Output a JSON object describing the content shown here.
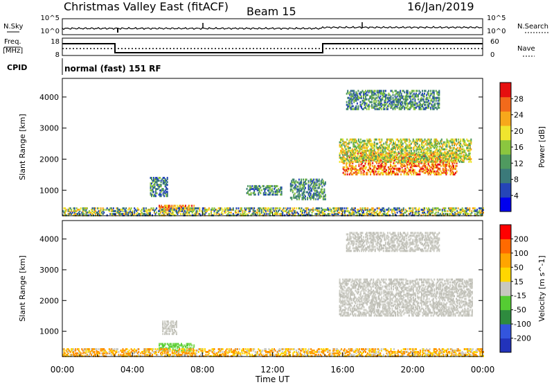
{
  "header": {
    "title": "Christmas Valley East (fitACF)",
    "beam": "Beam 15",
    "date": "16/Jan/2019"
  },
  "top_panels": {
    "nsky_label": "N.Sky",
    "nsky_ticks": [
      "10^5",
      "10^0"
    ],
    "nsearch_label": "N.Search",
    "nsearch_ticks": [
      "10^5",
      "10^0"
    ],
    "freq_label": "Freq.",
    "freq_unit": "[MHz]",
    "freq_ticks": [
      "18",
      "8"
    ],
    "nave_label": "Nave",
    "nave_ticks": [
      "60",
      "0"
    ],
    "cpid_label": "CPID",
    "cpid_text": "normal (fast) 151 RF"
  },
  "chart_data": [
    {
      "type": "heatmap",
      "panel": "power",
      "ylabel": "Slant Range [km]",
      "yticks": [
        "1000",
        "2000",
        "3000",
        "4000"
      ],
      "ylim": [
        180,
        4600
      ],
      "xlim": [
        "00:00",
        "24:00"
      ],
      "colorbar": {
        "label": "Power [dB]",
        "ticks": [
          "4",
          "8",
          "12",
          "16",
          "20",
          "24",
          "28"
        ],
        "range": [
          0,
          32
        ],
        "colors": [
          "#0000ee",
          "#2545b8",
          "#3b7a7a",
          "#4f9a5f",
          "#8bc63f",
          "#f0e52e",
          "#f7a81b",
          "#f26a1b",
          "#e60f0f"
        ]
      },
      "regions": [
        {
          "t_start": 16.0,
          "t_end": 22.5,
          "range_low": 1500,
          "range_high": 2200,
          "level": "high"
        },
        {
          "t_start": 15.8,
          "t_end": 23.3,
          "range_low": 1900,
          "range_high": 2650,
          "level": "medium"
        },
        {
          "t_start": 16.2,
          "t_end": 21.5,
          "range_low": 3600,
          "range_high": 4200,
          "level": "low"
        },
        {
          "t_start": 5.0,
          "t_end": 6.0,
          "range_low": 800,
          "range_high": 1400,
          "level": "low"
        },
        {
          "t_start": 5.5,
          "t_end": 7.5,
          "range_low": 350,
          "range_high": 500,
          "level": "high"
        },
        {
          "t_start": 10.5,
          "t_end": 12.5,
          "range_low": 850,
          "range_high": 1150,
          "level": "low"
        },
        {
          "t_start": 13.0,
          "t_end": 15.0,
          "range_low": 700,
          "range_high": 1350,
          "level": "low"
        },
        {
          "t_start": 0.0,
          "t_end": 24.0,
          "range_low": 180,
          "range_high": 450,
          "level": "mixed"
        }
      ]
    },
    {
      "type": "heatmap",
      "panel": "velocity",
      "ylabel": "Slant Range [km]",
      "yticks": [
        "1000",
        "2000",
        "3000",
        "4000"
      ],
      "ylim": [
        180,
        4600
      ],
      "xlim": [
        "00:00",
        "24:00"
      ],
      "xlabel": "Time UT",
      "xticks": [
        "00:00",
        "04:00",
        "08:00",
        "12:00",
        "16:00",
        "20:00",
        "00:00"
      ],
      "colorbar": {
        "label": "Velocity [m s^-1]",
        "ticks": [
          "200",
          "100",
          "50",
          "15",
          "-15",
          "-50",
          "-100",
          "-200"
        ],
        "colors": [
          "#2233bb",
          "#3355dd",
          "#2e8b3e",
          "#55cc33",
          "#c8c8c0",
          "#ffd700",
          "#ffa500",
          "#ff6a00",
          "#ff0000"
        ]
      },
      "regions": [
        {
          "t_start": 15.8,
          "t_end": 23.4,
          "range_low": 1500,
          "range_high": 2700,
          "level": "ground"
        },
        {
          "t_start": 16.2,
          "t_end": 21.5,
          "range_low": 3600,
          "range_high": 4200,
          "level": "ground"
        },
        {
          "t_start": 5.7,
          "t_end": 6.5,
          "range_low": 900,
          "range_high": 1350,
          "level": "ground"
        },
        {
          "t_start": 5.5,
          "t_end": 7.5,
          "range_low": 350,
          "range_high": 600,
          "level": "green"
        },
        {
          "t_start": 0.0,
          "t_end": 24.0,
          "range_low": 180,
          "range_high": 450,
          "level": "orange"
        }
      ]
    }
  ]
}
